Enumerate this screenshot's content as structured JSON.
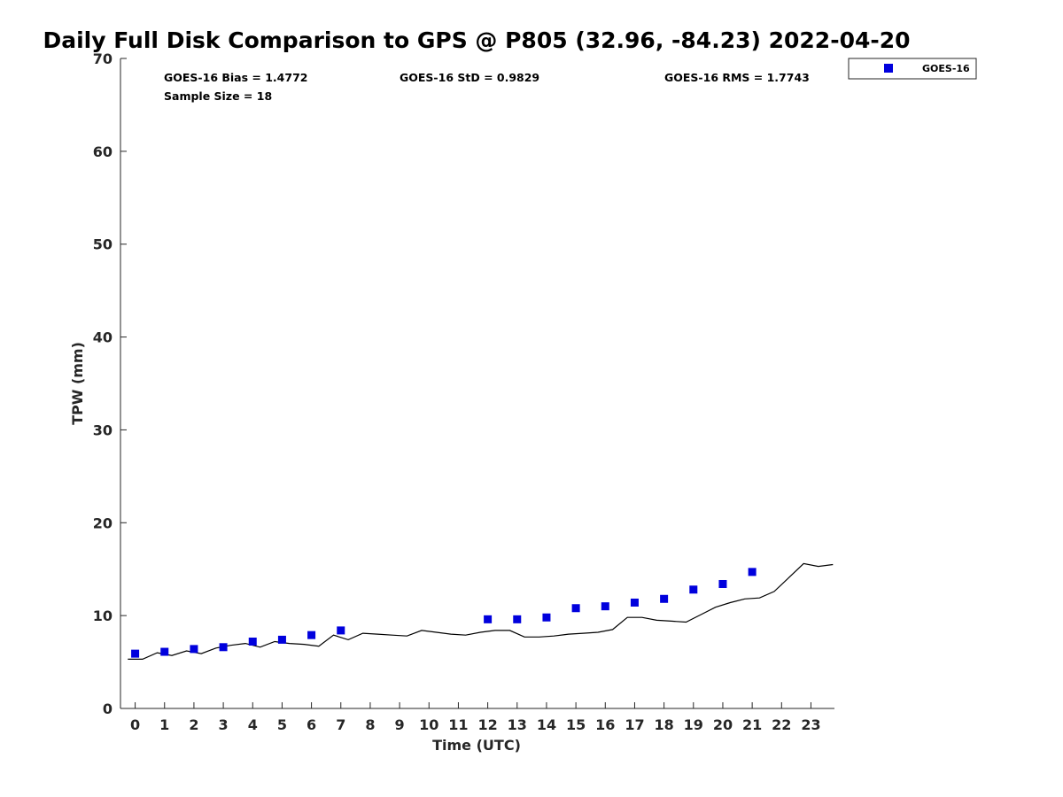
{
  "chart_data": {
    "type": "scatter",
    "title": "Daily Full Disk Comparison to GPS @ P805 (32.96, -84.23) 2022-04-20",
    "xlabel": "Time (UTC)",
    "ylabel": "TPW (mm)",
    "xlim": [
      -0.5,
      23.8
    ],
    "ylim": [
      0,
      70
    ],
    "xticks": [
      0,
      1,
      2,
      3,
      4,
      5,
      6,
      7,
      8,
      9,
      10,
      11,
      12,
      13,
      14,
      15,
      16,
      17,
      18,
      19,
      20,
      21,
      22,
      23
    ],
    "yticks": [
      0,
      10,
      20,
      30,
      40,
      50,
      60,
      70
    ],
    "grid": false,
    "legend_position": "top-right",
    "colors": {
      "goes16": "#0000dd",
      "gps_line": "#000000"
    },
    "stats": {
      "bias": "GOES-16 Bias = 1.4772",
      "std": "GOES-16 StD = 0.9829",
      "rms": "GOES-16 RMS = 1.7743",
      "sample": "Sample Size = 18"
    },
    "series": [
      {
        "name": "GOES-16",
        "marker": "square",
        "x": [
          0,
          1,
          2,
          3,
          4,
          5,
          6,
          7,
          12,
          13,
          14,
          15,
          16,
          17,
          18,
          19,
          20,
          21
        ],
        "y": [
          5.9,
          6.1,
          6.4,
          6.6,
          7.2,
          7.4,
          7.9,
          8.4,
          9.6,
          9.6,
          9.8,
          10.8,
          11.0,
          11.4,
          11.8,
          12.8,
          13.4,
          14.7
        ]
      },
      {
        "name": "",
        "marker": "line",
        "x": [
          -0.25,
          0.25,
          0.75,
          1.25,
          1.75,
          2.25,
          2.75,
          3.25,
          3.75,
          4.25,
          4.75,
          5.25,
          5.75,
          6.25,
          6.75,
          7.25,
          7.75,
          8.25,
          8.75,
          9.25,
          9.75,
          10.25,
          10.75,
          11.25,
          11.75,
          12.25,
          12.75,
          13.25,
          13.75,
          14.25,
          14.75,
          15.25,
          15.75,
          16.25,
          16.75,
          17.25,
          17.75,
          18.25,
          18.75,
          19.25,
          19.75,
          20.25,
          20.75,
          21.25,
          21.75,
          22.25,
          22.75,
          23.25,
          23.75
        ],
        "y": [
          5.3,
          5.3,
          6.0,
          5.7,
          6.2,
          5.9,
          6.5,
          6.8,
          7.0,
          6.6,
          7.2,
          7.0,
          6.9,
          6.7,
          7.9,
          7.4,
          8.1,
          8.0,
          7.9,
          7.8,
          8.4,
          8.2,
          8.0,
          7.9,
          8.2,
          8.4,
          8.4,
          7.7,
          7.7,
          7.8,
          8.0,
          8.1,
          8.2,
          8.5,
          9.8,
          9.8,
          9.5,
          9.4,
          9.3,
          10.1,
          10.9,
          11.4,
          11.8,
          11.9,
          12.6,
          14.1,
          15.6,
          15.3,
          15.5
        ]
      }
    ]
  }
}
